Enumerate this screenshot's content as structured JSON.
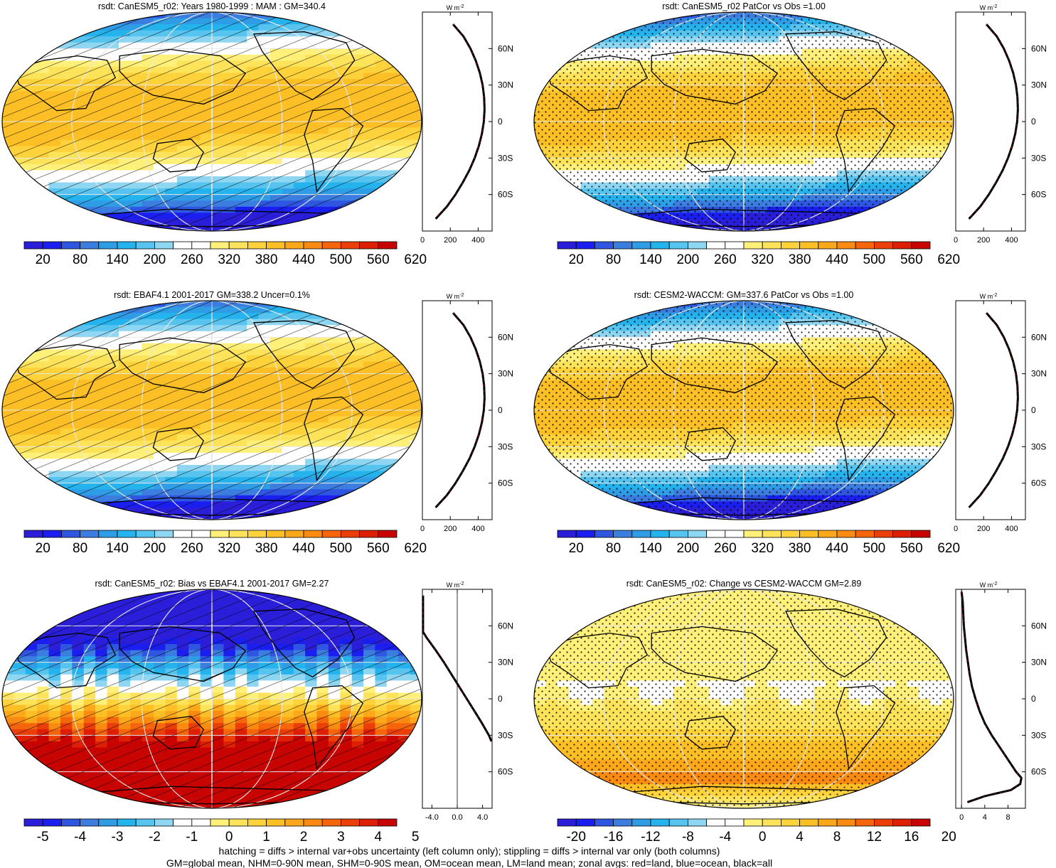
{
  "chart_data": [
    {
      "type": "heatmap",
      "title": "rsdt: CanESM5_r02: Years 1980-1999 : MAM : GM=340.4",
      "colorbar": {
        "ticks": [
          "20",
          "80",
          "140",
          "200",
          "260",
          "320",
          "380",
          "440",
          "500",
          "560",
          "620"
        ],
        "min": -10,
        "max": 650
      },
      "lat_labels": [
        "60N",
        "30N",
        "0",
        "30S",
        "60S"
      ],
      "zonal_axis": {
        "ticks": [
          "0",
          "200",
          "400"
        ],
        "range": [
          0,
          500
        ],
        "unit": "W m",
        "unit_sup": "-2"
      },
      "field": "rsdt",
      "zonal_profile": [
        [
          80,
          220
        ],
        [
          70,
          295
        ],
        [
          60,
          345
        ],
        [
          50,
          383
        ],
        [
          40,
          412
        ],
        [
          30,
          432
        ],
        [
          20,
          443
        ],
        [
          10,
          446
        ],
        [
          0,
          441
        ],
        [
          -10,
          427
        ],
        [
          -20,
          405
        ],
        [
          -30,
          375
        ],
        [
          -40,
          337
        ],
        [
          -50,
          290
        ],
        [
          -60,
          237
        ],
        [
          -70,
          175
        ],
        [
          -80,
          95
        ]
      ],
      "hatch": "hatch"
    },
    {
      "type": "heatmap",
      "title": "rsdt: CanESM5_r02 PatCor vs Obs =1.00",
      "colorbar": {
        "ticks": [
          "20",
          "80",
          "140",
          "200",
          "260",
          "320",
          "380",
          "440",
          "500",
          "560",
          "620"
        ],
        "min": -10,
        "max": 650
      },
      "lat_labels": [
        "60N",
        "30N",
        "0",
        "30S",
        "60S"
      ],
      "zonal_axis": {
        "ticks": [
          "0",
          "200",
          "400"
        ],
        "range": [
          0,
          500
        ],
        "unit": "W m",
        "unit_sup": "-2"
      },
      "field": "rsdt",
      "zonal_profile": [
        [
          80,
          220
        ],
        [
          70,
          295
        ],
        [
          60,
          345
        ],
        [
          50,
          383
        ],
        [
          40,
          412
        ],
        [
          30,
          432
        ],
        [
          20,
          443
        ],
        [
          10,
          446
        ],
        [
          0,
          441
        ],
        [
          -10,
          427
        ],
        [
          -20,
          405
        ],
        [
          -30,
          375
        ],
        [
          -40,
          337
        ],
        [
          -50,
          290
        ],
        [
          -60,
          237
        ],
        [
          -70,
          175
        ],
        [
          -80,
          95
        ]
      ],
      "hatch": "stipple"
    },
    {
      "type": "heatmap",
      "title": "rsdt: EBAF4.1 2001-2017 GM=338.2 Uncer=0.1%",
      "colorbar": {
        "ticks": [
          "20",
          "80",
          "140",
          "200",
          "260",
          "320",
          "380",
          "440",
          "500",
          "560",
          "620"
        ],
        "min": -10,
        "max": 650
      },
      "lat_labels": [
        "60N",
        "30N",
        "0",
        "30S",
        "60S"
      ],
      "zonal_axis": {
        "ticks": [
          "0",
          "200",
          "400"
        ],
        "range": [
          0,
          500
        ],
        "unit": "W m",
        "unit_sup": "-2"
      },
      "field": "rsdt",
      "zonal_profile": [
        [
          80,
          220
        ],
        [
          70,
          295
        ],
        [
          60,
          345
        ],
        [
          50,
          383
        ],
        [
          40,
          412
        ],
        [
          30,
          432
        ],
        [
          20,
          443
        ],
        [
          10,
          446
        ],
        [
          0,
          441
        ],
        [
          -10,
          427
        ],
        [
          -20,
          405
        ],
        [
          -30,
          375
        ],
        [
          -40,
          337
        ],
        [
          -50,
          290
        ],
        [
          -60,
          237
        ],
        [
          -70,
          175
        ],
        [
          -80,
          95
        ]
      ],
      "hatch": "hatch"
    },
    {
      "type": "heatmap",
      "title": "rsdt: CESM2-WACCM: GM=337.6 PatCor vs Obs =1.00",
      "colorbar": {
        "ticks": [
          "20",
          "80",
          "140",
          "200",
          "260",
          "320",
          "380",
          "440",
          "500",
          "560",
          "620"
        ],
        "min": -10,
        "max": 650
      },
      "lat_labels": [
        "60N",
        "30N",
        "0",
        "30S",
        "60S"
      ],
      "zonal_axis": {
        "ticks": [
          "0",
          "200",
          "400"
        ],
        "range": [
          0,
          500
        ],
        "unit": "W m",
        "unit_sup": "-2"
      },
      "field": "rsdt",
      "zonal_profile": [
        [
          80,
          220
        ],
        [
          70,
          295
        ],
        [
          60,
          345
        ],
        [
          50,
          383
        ],
        [
          40,
          412
        ],
        [
          30,
          432
        ],
        [
          20,
          443
        ],
        [
          10,
          446
        ],
        [
          0,
          441
        ],
        [
          -10,
          427
        ],
        [
          -20,
          405
        ],
        [
          -30,
          375
        ],
        [
          -40,
          337
        ],
        [
          -50,
          290
        ],
        [
          -60,
          237
        ],
        [
          -70,
          175
        ],
        [
          -80,
          95
        ]
      ],
      "hatch": "stipple"
    },
    {
      "type": "heatmap",
      "title": "rsdt: CanESM5_r02: Bias vs EBAF4.1 2001-2017 GM=2.27",
      "colorbar": {
        "ticks": [
          "-5",
          "-4",
          "-3",
          "-2",
          "-1",
          "0",
          "1",
          "2",
          "3",
          "4",
          "5"
        ],
        "min": -5.5,
        "max": 5.5
      },
      "lat_labels": [
        "60N",
        "30N",
        "0",
        "30S",
        "60S"
      ],
      "zonal_axis": {
        "ticks": [
          "-4.0",
          "0.0",
          "4.0"
        ],
        "range": [
          -5.5,
          5.5
        ],
        "unit": "W m",
        "unit_sup": "-2"
      },
      "field": "bias",
      "zonal_profile": [
        [
          85,
          -5.4
        ],
        [
          55,
          -5.4
        ],
        [
          50,
          -4.8
        ],
        [
          40,
          -3.4
        ],
        [
          30,
          -2.1
        ],
        [
          20,
          -0.9
        ],
        [
          10,
          0.3
        ],
        [
          0,
          1.5
        ],
        [
          -10,
          2.7
        ],
        [
          -20,
          3.9
        ],
        [
          -30,
          5.0
        ],
        [
          -35,
          5.4
        ]
      ],
      "hatch": "hatch"
    },
    {
      "type": "heatmap",
      "title": "rsdt: CanESM5_r02: Change vs CESM2-WACCM GM=2.89",
      "colorbar": {
        "ticks": [
          "-20",
          "-16",
          "-12",
          "-8",
          "-4",
          "0",
          "4",
          "8",
          "12",
          "16",
          "20"
        ],
        "min": -22,
        "max": 22
      },
      "lat_labels": [
        "60N",
        "30N",
        "0",
        "30S",
        "60S"
      ],
      "zonal_axis": {
        "ticks": [
          "0",
          "4",
          "8"
        ],
        "range": [
          -1,
          11
        ],
        "unit": "W m",
        "unit_sup": "-2"
      },
      "field": "change",
      "zonal_profile": [
        [
          88,
          0.0
        ],
        [
          80,
          0.2
        ],
        [
          60,
          0.4
        ],
        [
          40,
          0.8
        ],
        [
          20,
          1.4
        ],
        [
          10,
          1.8
        ],
        [
          0,
          2.4
        ],
        [
          -10,
          3.1
        ],
        [
          -20,
          4.0
        ],
        [
          -30,
          5.2
        ],
        [
          -40,
          6.6
        ],
        [
          -50,
          8.0
        ],
        [
          -60,
          9.4
        ],
        [
          -65,
          10.3
        ],
        [
          -70,
          10.1
        ],
        [
          -75,
          8.5
        ],
        [
          -80,
          4.0
        ],
        [
          -85,
          1.0
        ]
      ],
      "hatch": "stipple"
    }
  ],
  "footer": {
    "line1": "hatching = diffs > internal var+obs uncertainty (left column only); stippling = diffs > internal var only (both columns)",
    "line2": "GM=global mean, NHM=0-90N mean, SHM=0-90S mean, OM=ocean mean, LM=land mean; zonal avgs: red=land, blue=ocean, black=all"
  }
}
